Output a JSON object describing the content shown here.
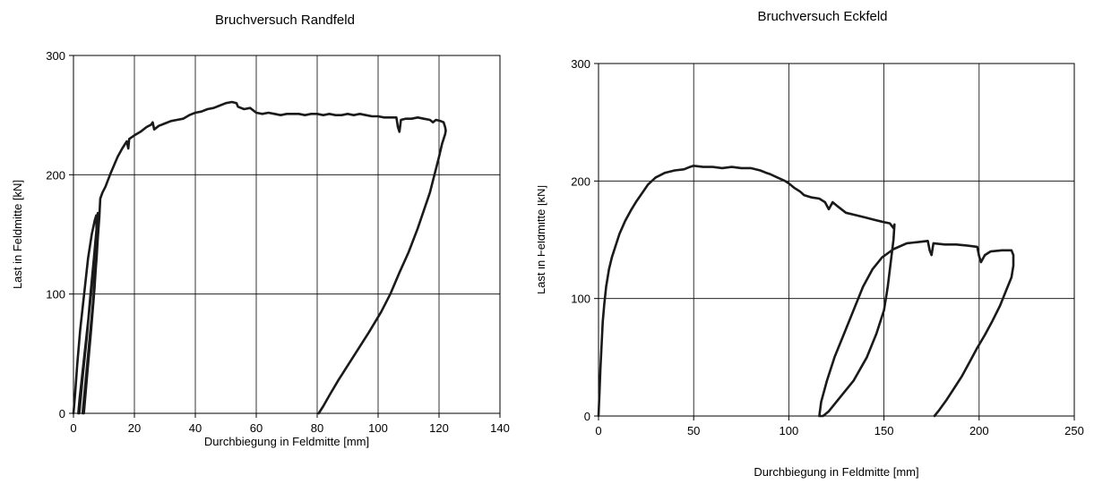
{
  "chart_data": [
    {
      "type": "line",
      "title": "Bruchversuch Randfeld",
      "xlabel": "Durchbiegung in Feldmitte [mm]",
      "ylabel": "Last in Feldmitte  [kN]",
      "xlim": [
        0,
        140
      ],
      "ylim": [
        0,
        300
      ],
      "xticks": [
        0,
        20,
        40,
        60,
        80,
        100,
        120,
        140
      ],
      "yticks": [
        0,
        100,
        200,
        300
      ],
      "grid": true,
      "series": [
        {
          "color": "#1a1a1a",
          "points": [
            [
              0,
              0
            ],
            [
              0.5,
              15
            ],
            [
              1.2,
              40
            ],
            [
              2.2,
              70
            ],
            [
              3.5,
              100
            ],
            [
              4.8,
              130
            ],
            [
              6,
              150
            ],
            [
              7,
              162
            ],
            [
              7.5,
              166
            ],
            [
              7.6,
              150
            ],
            [
              7,
              130
            ],
            [
              5.8,
              100
            ],
            [
              4.5,
              70
            ],
            [
              3.2,
              40
            ],
            [
              2,
              12
            ],
            [
              1.6,
              0
            ],
            [
              1.9,
              0
            ],
            [
              3,
              30
            ],
            [
              4.4,
              65
            ],
            [
              5.6,
              100
            ],
            [
              6.7,
              130
            ],
            [
              7.6,
              155
            ],
            [
              8,
              168
            ],
            [
              8.3,
              160
            ],
            [
              7.6,
              130
            ],
            [
              6.5,
              95
            ],
            [
              5.2,
              60
            ],
            [
              3.9,
              25
            ],
            [
              3,
              0
            ],
            [
              3.4,
              0
            ],
            [
              4.6,
              35
            ],
            [
              5.8,
              70
            ],
            [
              6.9,
              105
            ],
            [
              7.8,
              140
            ],
            [
              8.5,
              165
            ],
            [
              8.8,
              180
            ],
            [
              9.5,
              185
            ],
            [
              10.5,
              190
            ],
            [
              12,
              200
            ],
            [
              13,
              206
            ],
            [
              14.5,
              215
            ],
            [
              16,
              222
            ],
            [
              17.5,
              228
            ],
            [
              18,
              222
            ],
            [
              18.3,
              230
            ],
            [
              20,
              233
            ],
            [
              22,
              236
            ],
            [
              24,
              240
            ],
            [
              25.5,
              242
            ],
            [
              26,
              244
            ],
            [
              26.5,
              238
            ],
            [
              28,
              241
            ],
            [
              30,
              243
            ],
            [
              32,
              245
            ],
            [
              34,
              246
            ],
            [
              36,
              247
            ],
            [
              38,
              250
            ],
            [
              40,
              252
            ],
            [
              42,
              253
            ],
            [
              44,
              255
            ],
            [
              46,
              256
            ],
            [
              48,
              258
            ],
            [
              50,
              260
            ],
            [
              52,
              261
            ],
            [
              53.5,
              260
            ],
            [
              54,
              257
            ],
            [
              56,
              255
            ],
            [
              58,
              256
            ],
            [
              60,
              252
            ],
            [
              62,
              251
            ],
            [
              64,
              252
            ],
            [
              66,
              251
            ],
            [
              68,
              250
            ],
            [
              70,
              251
            ],
            [
              72,
              251
            ],
            [
              74,
              251
            ],
            [
              76,
              250
            ],
            [
              78,
              251
            ],
            [
              80,
              251
            ],
            [
              82,
              250
            ],
            [
              84,
              251
            ],
            [
              86,
              250
            ],
            [
              88,
              250
            ],
            [
              90,
              251
            ],
            [
              92,
              250
            ],
            [
              94,
              251
            ],
            [
              96,
              250
            ],
            [
              98,
              249
            ],
            [
              100,
              249
            ],
            [
              102,
              248
            ],
            [
              104,
              248
            ],
            [
              106,
              248
            ],
            [
              106.5,
              240
            ],
            [
              107,
              236
            ],
            [
              107.5,
              246
            ],
            [
              109,
              247
            ],
            [
              111,
              247
            ],
            [
              113,
              248
            ],
            [
              115,
              247
            ],
            [
              117,
              246
            ],
            [
              118,
              244
            ],
            [
              119,
              246
            ],
            [
              120.5,
              245
            ],
            [
              121.5,
              244
            ],
            [
              122,
              240
            ],
            [
              122.2,
              237
            ],
            [
              122,
              234
            ],
            [
              121,
              226
            ],
            [
              120,
              215
            ],
            [
              118.5,
              200
            ],
            [
              117,
              185
            ],
            [
              115,
              170
            ],
            [
              113,
              155
            ],
            [
              110,
              135
            ],
            [
              107,
              118
            ],
            [
              104,
              100
            ],
            [
              101,
              85
            ],
            [
              97,
              68
            ],
            [
              93,
              52
            ],
            [
              90,
              40
            ],
            [
              87,
              28
            ],
            [
              84,
              15
            ],
            [
              82,
              6
            ],
            [
              80.5,
              0
            ]
          ]
        }
      ]
    },
    {
      "type": "line",
      "title": "Bruchversuch Eckfeld",
      "xlabel": "Durchbiegung in Feldmitte [mm]",
      "ylabel": "Last in Feldmitte  [kN]",
      "xlim": [
        0,
        250
      ],
      "ylim": [
        0,
        300
      ],
      "xticks": [
        0,
        50,
        100,
        150,
        200,
        250
      ],
      "yticks": [
        0,
        100,
        200,
        300
      ],
      "grid": true,
      "series": [
        {
          "color": "#1a1a1a",
          "points": [
            [
              0,
              0
            ],
            [
              0.5,
              20
            ],
            [
              1,
              40
            ],
            [
              1.6,
              60
            ],
            [
              2.2,
              80
            ],
            [
              3,
              95
            ],
            [
              4,
              110
            ],
            [
              5.5,
              125
            ],
            [
              7,
              135
            ],
            [
              9,
              145
            ],
            [
              11,
              155
            ],
            [
              14,
              166
            ],
            [
              17,
              175
            ],
            [
              20,
              183
            ],
            [
              23,
              190
            ],
            [
              26,
              197
            ],
            [
              30,
              203
            ],
            [
              35,
              207
            ],
            [
              40,
              209
            ],
            [
              45,
              210
            ],
            [
              48,
              212
            ],
            [
              50,
              213
            ],
            [
              55,
              212
            ],
            [
              60,
              212
            ],
            [
              65,
              211
            ],
            [
              70,
              212
            ],
            [
              75,
              211
            ],
            [
              80,
              211
            ],
            [
              85,
              209
            ],
            [
              88,
              207
            ],
            [
              90,
              206
            ],
            [
              94,
              203
            ],
            [
              98,
              200
            ],
            [
              100,
              198
            ],
            [
              103,
              194
            ],
            [
              106,
              191
            ],
            [
              108,
              188
            ],
            [
              112,
              186
            ],
            [
              116,
              185
            ],
            [
              119,
              182
            ],
            [
              121,
              176
            ],
            [
              123,
              182
            ],
            [
              126,
              178
            ],
            [
              130,
              173
            ],
            [
              135,
              171
            ],
            [
              140,
              169
            ],
            [
              145,
              167
            ],
            [
              150,
              165
            ],
            [
              153,
              164
            ],
            [
              155,
              160
            ],
            [
              155.5,
              163
            ],
            [
              155,
              150
            ],
            [
              153.5,
              130
            ],
            [
              152,
              110
            ],
            [
              150,
              90
            ],
            [
              146,
              70
            ],
            [
              141,
              50
            ],
            [
              134,
              30
            ],
            [
              126,
              14
            ],
            [
              121,
              4
            ],
            [
              118,
              0
            ],
            [
              116,
              0
            ],
            [
              117,
              12
            ],
            [
              120,
              30
            ],
            [
              124,
              50
            ],
            [
              129,
              70
            ],
            [
              134,
              90
            ],
            [
              139,
              110
            ],
            [
              144,
              125
            ],
            [
              149,
              135
            ],
            [
              155,
              142
            ],
            [
              162,
              147
            ],
            [
              168,
              148
            ],
            [
              173,
              149
            ],
            [
              174,
              141
            ],
            [
              175,
              137
            ],
            [
              176,
              147
            ],
            [
              182,
              146
            ],
            [
              188,
              146
            ],
            [
              194,
              145
            ],
            [
              199,
              144
            ],
            [
              200,
              136
            ],
            [
              201,
              131
            ],
            [
              203,
              137
            ],
            [
              206,
              140
            ],
            [
              212,
              141
            ],
            [
              217,
              141
            ],
            [
              218,
              137
            ],
            [
              218,
              128
            ],
            [
              217,
              118
            ],
            [
              214,
              106
            ],
            [
              211,
              94
            ],
            [
              207,
              81
            ],
            [
              203,
              69
            ],
            [
              199,
              58
            ],
            [
              195,
              46
            ],
            [
              191,
              34
            ],
            [
              187,
              24
            ],
            [
              183,
              14
            ],
            [
              179,
              5
            ],
            [
              176.5,
              0
            ]
          ]
        }
      ]
    }
  ]
}
